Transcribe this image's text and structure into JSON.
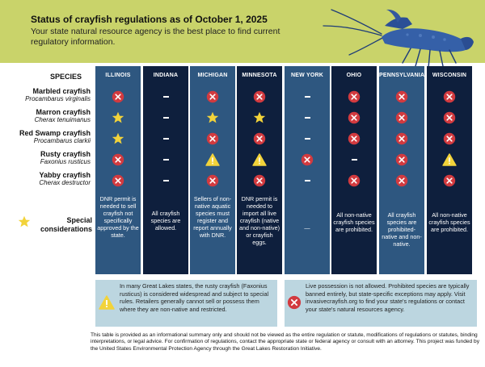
{
  "header": {
    "title": "Status of crayfish regulations as of October 1, 2025",
    "subtitle": "Your state natural resource agency is the best place to find current regulatory information."
  },
  "species_heading": "SPECIES",
  "species": [
    {
      "name": "Marbled crayfish",
      "latin": "Procambarus virginalis"
    },
    {
      "name": "Marron crayfish",
      "latin": "Cherax tenuimanus"
    },
    {
      "name": "Red Swamp crayfish",
      "latin": "Procambarus clarkii"
    },
    {
      "name": "Rusty crayfish",
      "latin": "Faxonius rusticus"
    },
    {
      "name": "Yabby crayfish",
      "latin": "Cherax destructor"
    }
  ],
  "special_label": "Special considerations",
  "states": [
    {
      "name": "ILLINOIS",
      "shade": "light",
      "status": [
        "banned",
        "star",
        "star",
        "banned",
        "banned"
      ],
      "note": "DNR permit is needed to sell crayfish not specifically approved by the state."
    },
    {
      "name": "INDIANA",
      "shade": "dark",
      "status": [
        "none",
        "none",
        "none",
        "none",
        "none"
      ],
      "note": "All crayfish species are allowed."
    },
    {
      "name": "MICHIGAN",
      "shade": "light",
      "status": [
        "banned",
        "star",
        "banned",
        "warning",
        "banned"
      ],
      "note": "Sellers of non-native aquatic species must register and report annually with DNR."
    },
    {
      "name": "MINNESOTA",
      "shade": "dark",
      "status": [
        "banned",
        "star",
        "banned",
        "warning",
        "banned"
      ],
      "note": "DNR permit is needed to import all live crayfish (native and non-native) or crayfish eggs."
    },
    {
      "name": "NEW YORK",
      "shade": "light",
      "status": [
        "none",
        "none",
        "none",
        "banned",
        "none"
      ],
      "note": "—"
    },
    {
      "name": "OHIO",
      "shade": "dark",
      "status": [
        "banned",
        "banned",
        "banned",
        "none",
        "banned"
      ],
      "note": "All non-native crayfish species are prohibited."
    },
    {
      "name": "PENNSYLVANIA",
      "shade": "light",
      "status": [
        "banned",
        "banned",
        "banned",
        "banned",
        "banned"
      ],
      "note": "All crayfish species are prohibited- native and non-native."
    },
    {
      "name": "WISCONSIN",
      "shade": "dark",
      "status": [
        "banned",
        "banned",
        "banned",
        "warning",
        "banned"
      ],
      "note": "All non-native crayfish species are prohibited."
    }
  ],
  "legend": {
    "warning_text": "In many Great Lakes states, the rusty crayfish (Faxonius rusticus) is considered widespread and subject to special rules. Retailers generally cannot sell or possess them where they are non-native and restricted.",
    "banned_text": "Live possession is not allowed. Prohibited species are typically banned entirely, but state-specific exceptions may apply. Visit invasivecrayfish.org to find your state's regulations or contact your state's natural resources agency."
  },
  "footer": "This table is provided as an informational summary only and should not be viewed as the entire regulation or statute, modifications of regulations or statutes, binding interpretations, or legal advice. For confirmation of regulations, contact the appropriate state or federal agency or consult with an attorney. This project was funded by the United States Environmental Protection Agency through the Great Lakes Restoration Initiative.",
  "colors": {
    "header_bg": "#c9d36a",
    "column_light": "#2e5780",
    "column_dark": "#0e1f3d",
    "banned_icon": "#d23a3f",
    "star_icon": "#f2d33a",
    "warning_icon": "#f2d33a",
    "legend_bg": "#bcd6e0"
  },
  "icons": {
    "banned": "x-circle-icon",
    "star": "star-icon",
    "warning": "warning-triangle-icon",
    "none": "dash"
  }
}
